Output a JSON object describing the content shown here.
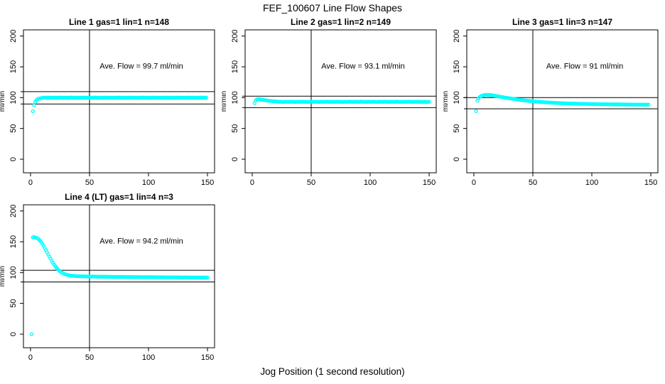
{
  "figure": {
    "title": "FEF_100607  Line Flow Shapes",
    "xlabel": "Jog Position (1 second resolution)",
    "ylabel": "ml/min",
    "point_color": "#00FFFF",
    "line_color": "#000000",
    "background": "#FFFFFF"
  },
  "axes": {
    "x_ticks": [
      0,
      50,
      100,
      150
    ],
    "y_ticks": [
      0,
      50,
      100,
      150,
      200
    ],
    "xlim": [
      -6,
      156
    ],
    "ylim": [
      -22,
      210
    ],
    "grid": false
  },
  "chart_data": [
    {
      "type": "scatter",
      "title": "Line 1 gas=1 lin=1 n=148",
      "annotation": "Ave. Flow =  99.7  ml/min",
      "ave_flow": 99.7,
      "n": 148,
      "vline": 50,
      "hlines": [
        109.7,
        89.7
      ],
      "x_start": 2,
      "y_values": [
        78,
        88,
        93,
        96,
        97.5,
        98.3,
        98.8,
        99.2,
        99.6,
        100,
        99.5,
        100.2,
        99.8,
        100.3,
        99.6,
        100.1,
        99.7,
        100,
        99.6,
        100,
        99.5,
        100.2,
        99.8,
        100.3,
        99.6,
        100.1,
        99.7,
        100,
        99.6,
        100,
        99.5,
        100.2,
        99.8,
        100.3,
        99.6,
        100.1,
        99.7,
        100,
        99.6,
        100,
        99.5,
        100.2,
        99.8,
        100.3,
        99.6,
        100.1,
        99.7,
        100,
        99.6,
        100,
        99.5,
        100.2,
        99.8,
        100.3,
        99.6,
        100.1,
        99.7,
        100,
        99.6,
        100,
        99.5,
        100.2,
        99.8,
        100.3,
        99.6,
        100.1,
        99.7,
        100,
        99.6,
        100,
        99.5,
        100.2,
        99.8,
        100.3,
        99.6,
        100.1,
        99.7,
        100,
        99.6,
        100,
        99.5,
        100.2,
        99.8,
        100.3,
        99.6,
        100.1,
        99.7,
        100,
        99.6,
        100,
        99.5,
        100.2,
        99.8,
        100.3,
        99.6,
        100.1,
        99.7,
        100,
        99.6,
        100,
        99.5,
        100.2,
        99.8,
        100.3,
        99.6,
        100.1,
        99.7,
        100,
        99.6,
        100,
        99.5,
        100.2,
        99.8,
        100.3,
        99.6,
        100.1,
        99.7,
        100,
        99.6,
        100,
        99.5,
        100.2,
        99.8,
        100.3,
        99.6,
        100.1,
        99.7,
        100,
        99.6,
        100,
        99.5,
        100.2,
        99.8,
        100.3,
        99.6,
        100.1,
        99.7,
        100,
        99.6,
        100,
        99.5,
        100.2,
        99.8,
        100.3,
        99.6,
        100.1,
        99.7,
        100
      ]
    },
    {
      "type": "scatter",
      "title": "Line 2 gas=1 lin=2 n=149",
      "annotation": "Ave. Flow =  93.1  ml/min",
      "ave_flow": 93.1,
      "n": 149,
      "vline": 50,
      "hlines": [
        102.4,
        83.8
      ],
      "x_start": 2,
      "y_values": [
        91,
        95.5,
        97,
        97.5,
        97.4,
        97.1,
        96.8,
        96.5,
        96.1,
        95.8,
        95.5,
        95.2,
        94.9,
        94.7,
        94.5,
        94.3,
        94.1,
        94,
        93.8,
        93.7,
        93.5,
        93.1,
        93.4,
        93,
        93.3,
        92.9,
        93.4,
        93.1,
        93.3,
        93,
        93.5,
        93.1,
        93.4,
        93,
        93.3,
        92.9,
        93.4,
        93.1,
        93.3,
        93,
        93.5,
        93.1,
        93.4,
        93,
        93.3,
        92.9,
        93.4,
        93.1,
        93.3,
        93,
        93.5,
        93.1,
        93.4,
        93,
        93.3,
        92.9,
        93.4,
        93.1,
        93.3,
        93,
        93.5,
        93.1,
        93.4,
        93,
        93.3,
        92.9,
        93.4,
        93.1,
        93.3,
        93,
        93.5,
        93.1,
        93.4,
        93,
        93.3,
        92.9,
        93.4,
        93.1,
        93.3,
        93,
        93.5,
        93.1,
        93.4,
        93,
        93.3,
        92.9,
        93.4,
        93.1,
        93.3,
        93,
        93.5,
        93.1,
        93.4,
        93,
        93.3,
        92.9,
        93.4,
        93.1,
        93.3,
        93,
        93.5,
        93.1,
        93.4,
        93,
        93.3,
        92.9,
        93.4,
        93.1,
        93.3,
        93,
        93.5,
        93.1,
        93.4,
        93,
        93.3,
        92.9,
        93.4,
        93.1,
        93.3,
        93,
        93.5,
        93.1,
        93.4,
        93,
        93.3,
        92.9,
        93.4,
        93.1,
        93.3,
        93,
        93.5,
        93.1,
        93.4,
        93,
        93.3,
        92.9,
        93.4,
        93.1,
        93.3,
        93,
        93.2,
        92.9,
        93.3,
        93,
        93.2,
        92.9,
        93.1,
        93,
        93.2
      ]
    },
    {
      "type": "scatter",
      "title": "Line 3 gas=1 lin=3 n=147",
      "annotation": "Ave. Flow =  91  ml/min",
      "ave_flow": 91,
      "n": 147,
      "vline": 50,
      "hlines": [
        100.1,
        81.9
      ],
      "x_start": 2,
      "y_values": [
        78,
        95,
        99,
        101,
        102.3,
        103.2,
        103.8,
        104.2,
        104.4,
        104.5,
        104.4,
        104.3,
        104.2,
        104,
        103.6,
        103.3,
        103,
        102.6,
        102.3,
        101.9,
        101.6,
        101.2,
        100.9,
        100.6,
        100.2,
        99.9,
        99.6,
        99.3,
        99,
        98.7,
        98.4,
        98.1,
        97.8,
        97.5,
        97.2,
        97,
        96.7,
        96.5,
        96.2,
        96,
        95.7,
        95.5,
        95.3,
        95.1,
        94.9,
        94.7,
        94.5,
        94.3,
        94.1,
        93.9,
        93.7,
        93.6,
        93.4,
        93.2,
        93.1,
        92.9,
        92.8,
        92.6,
        92.5,
        92.4,
        92.2,
        92.1,
        92,
        91.9,
        91.8,
        91.7,
        91.6,
        91.5,
        91.4,
        91.3,
        91.2,
        91.1,
        91,
        90.9,
        90.9,
        90.8,
        90.7,
        90.6,
        90.6,
        90.5,
        90.4,
        90.4,
        90.3,
        90.3,
        90.2,
        90.2,
        90.1,
        90.1,
        90,
        90,
        89.9,
        89.9,
        89.8,
        89.8,
        89.8,
        89.7,
        89.7,
        89.6,
        89.6,
        89.6,
        89.5,
        89.5,
        89.5,
        89.4,
        89.4,
        89.4,
        89.3,
        89.3,
        89.3,
        89.3,
        89.2,
        89.2,
        89.2,
        89.2,
        89.1,
        89.1,
        89.1,
        89.1,
        89,
        89,
        89,
        89,
        89,
        88.9,
        88.9,
        88.9,
        88.9,
        88.9,
        88.8,
        88.8,
        88.8,
        88.8,
        88.8,
        88.8,
        88.7,
        88.7,
        88.7,
        88.7,
        88.7,
        88.7,
        88.6,
        88.6,
        88.6,
        88.6,
        88.6,
        88.6,
        88.6
      ]
    },
    {
      "type": "scatter",
      "title": "Line 4 (LT) gas=1 lin=4 n=3",
      "annotation": "Ave. Flow =  94.2  ml/min",
      "ave_flow": 94.2,
      "n": 3,
      "vline": 50,
      "hlines": [
        103.6,
        84.8
      ],
      "x_start": 1,
      "y_values": [
        0,
        157,
        157.5,
        157,
        156.5,
        155.5,
        154,
        152,
        149.5,
        146.5,
        143.5,
        140,
        136.5,
        133,
        129.5,
        126,
        122.5,
        119,
        116,
        113,
        110.3,
        107.8,
        105.6,
        103.7,
        102,
        100.6,
        99.4,
        98.4,
        97.6,
        96.9,
        96.3,
        95.8,
        95.4,
        95.1,
        94.8,
        94.6,
        94.4,
        94.3,
        94.2,
        94.1,
        94,
        94,
        93.9,
        93.9,
        93.8,
        93.8,
        93.7,
        93.7,
        93.6,
        93.6,
        93.6,
        93.5,
        93.5,
        93.5,
        93.4,
        93.4,
        93.4,
        93.3,
        93.3,
        93.3,
        93.3,
        93.2,
        93.2,
        93.2,
        93.2,
        93.1,
        93.1,
        93.1,
        93.1,
        93,
        93,
        93,
        93,
        93,
        92.9,
        92.9,
        92.9,
        92.9,
        92.9,
        92.8,
        92.8,
        92.8,
        92.8,
        92.8,
        92.8,
        92.7,
        92.7,
        92.7,
        92.7,
        92.7,
        92.7,
        92.6,
        92.6,
        92.6,
        92.6,
        92.6,
        92.6,
        92.5,
        92.5,
        92.5,
        92.5,
        92.5,
        92.5,
        92.5,
        92.4,
        92.4,
        92.4,
        92.4,
        92.4,
        92.4,
        92.4,
        92.3,
        92.3,
        92.3,
        92.3,
        92.3,
        92.3,
        92.3,
        92.3,
        92.2,
        92.2,
        92.2,
        92.2,
        92.2,
        92.2,
        92.2,
        92.2,
        92.1,
        92.1,
        92.1,
        92.1,
        92.1,
        92.1,
        92.1,
        92.1,
        92,
        92,
        92,
        92,
        92,
        92,
        92,
        92,
        91.9,
        91.9,
        91.9,
        91.9,
        91.9,
        91.9,
        91.9
      ]
    }
  ]
}
